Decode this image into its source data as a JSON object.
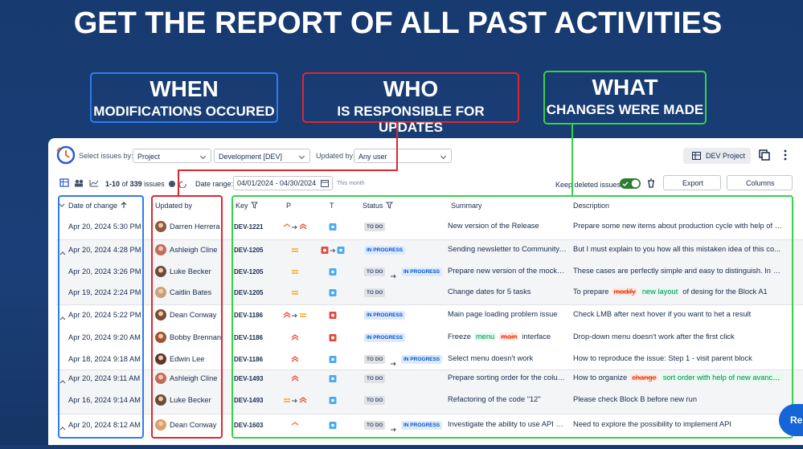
{
  "headline": "GET THE REPORT OF ALL PAST ACTIVITIES",
  "callouts": [
    {
      "title": "WHEN",
      "subtitle": "MODIFICATIONS OCCURED",
      "color": "#2f7bf0"
    },
    {
      "title": "WHO",
      "subtitle": "IS RESPONSIBLE FOR UPDATES",
      "color": "#e0262f"
    },
    {
      "title": "WHAT",
      "subtitle": "CHANGES WERE MADE",
      "color": "#38d14a"
    }
  ],
  "toolbar": {
    "select_label": "Select issues by:",
    "select_value": "Project",
    "project_value": "Development [DEV]",
    "updated_by_label": "Updated by:",
    "updated_by_value": "Any user",
    "project_button": "DEV Project"
  },
  "toolbar2": {
    "range": "1-10",
    "of": "of",
    "total": "339",
    "issues": "issues",
    "date_label": "Date range:",
    "date_value": "04/01/2024 - 04/30/2024",
    "date_hint": "This month",
    "keep_deleted": "Keep deleted issues",
    "export": "Export",
    "columns": "Columns"
  },
  "table": {
    "headers": [
      "Date of change",
      "Updated by",
      "Key",
      "P",
      "T",
      "Status",
      "Summary",
      "Description"
    ],
    "rows": [
      {
        "date": "Apr 20, 2024 5:30 PM",
        "user": "Darren Herrera",
        "avatar": "#8a5a3c",
        "key": "DEV-1221",
        "priority": [
          "high",
          "highest"
        ],
        "type": [
          "task"
        ],
        "status": [
          "TO DO"
        ],
        "summary": [
          {
            "text": "New version of the Release",
            "kind": "plain"
          }
        ],
        "description": [
          {
            "text": "Prepare some new items about production cycle with help of ...",
            "kind": "plain"
          }
        ]
      },
      {
        "date": "Apr 20, 2024 4:28 PM",
        "user": "Ashleigh Cline",
        "avatar": "#c46a5a",
        "key": "DEV-1205",
        "priority": [
          "medium"
        ],
        "type": [
          "bug",
          "task"
        ],
        "status": [
          "IN PROGRESS"
        ],
        "summary": [
          {
            "text": "Sending newsletter to Community...",
            "kind": "plain"
          }
        ],
        "description": [
          {
            "text": "But I must explain to you how all this mistaken idea of this co...",
            "kind": "plain"
          }
        ]
      },
      {
        "date": "Apr 20, 2024 3:26 PM",
        "user": "Luke Becker",
        "avatar": "#6b4a3a",
        "key": "DEV-1205",
        "priority": [
          "medium"
        ],
        "type": [
          "task"
        ],
        "status": [
          "TO DO",
          "IN PROGRESS"
        ],
        "summary": [
          {
            "text": "Prepare new version of the mocku...",
            "kind": "plain"
          }
        ],
        "description": [
          {
            "text": "These cases are perfectly simple and easy to distinguish. In a...",
            "kind": "plain"
          }
        ]
      },
      {
        "date": "Apr 19, 2024 2:24 PM",
        "user": "Caitlin Bates",
        "avatar": "#c9a27c",
        "key": "DEV-1205",
        "priority": [
          "medium"
        ],
        "type": [
          "task"
        ],
        "status": [
          "TO DO"
        ],
        "summary": [
          {
            "text": "Change dates for 5 tasks",
            "kind": "plain"
          }
        ],
        "description": [
          {
            "text": "To prepare",
            "kind": "plain"
          },
          {
            "text": "modify",
            "kind": "removed"
          },
          {
            "text": "new layout",
            "kind": "added"
          },
          {
            "text": "of desing for the Block A1",
            "kind": "plain"
          }
        ]
      },
      {
        "date": "Apr 20, 2024 5:22 PM",
        "user": "Dean Conway",
        "avatar": "#7a4e36",
        "key": "DEV-1186",
        "priority": [
          "highest",
          "medium"
        ],
        "type": [
          "bug"
        ],
        "status": [
          "IN PROGRESS"
        ],
        "summary": [
          {
            "text": "Main page loading problem issue",
            "kind": "plain"
          }
        ],
        "description": [
          {
            "text": "Check LMB after next hover if you want to het a result",
            "kind": "plain"
          }
        ]
      },
      {
        "date": "Apr 20, 2024 9:20 AM",
        "user": "Bobby Brennan",
        "avatar": "#a0522d",
        "key": "DEV-1186",
        "priority": [
          "highest"
        ],
        "type": [
          "bug"
        ],
        "status": [
          "IN PROGRESS"
        ],
        "summary": [
          {
            "text": "Freeze",
            "kind": "plain"
          },
          {
            "text": "menu",
            "kind": "added"
          },
          {
            "text": "main",
            "kind": "removed"
          },
          {
            "text": "interface",
            "kind": "plain"
          }
        ],
        "description": [
          {
            "text": "Drop-down menu doesn't work after the first click",
            "kind": "plain"
          }
        ]
      },
      {
        "date": "Apr 18, 2024 9:18 AM",
        "user": "Edwin Lee",
        "avatar": "#5a3a2a",
        "key": "DEV-1186",
        "priority": [
          "highest"
        ],
        "type": [
          "task"
        ],
        "status": [
          "TO DO",
          "IN PROGRESS"
        ],
        "summary": [
          {
            "text": "Select menu doesn't work",
            "kind": "plain"
          }
        ],
        "description": [
          {
            "text": "How to reproduce the issue: Step 1 - visit parent block",
            "kind": "plain"
          }
        ]
      },
      {
        "date": "Apr 20, 2024 9:11 AM",
        "user": "Ashleigh Cline",
        "avatar": "#c46a5a",
        "key": "DEV-1493",
        "priority": [
          "highest"
        ],
        "type": [
          "task"
        ],
        "status": [
          "TO DO"
        ],
        "summary": [
          {
            "text": "Prepare sorting order for the colu...",
            "kind": "plain"
          }
        ],
        "description": [
          {
            "text": "How to organize",
            "kind": "plain"
          },
          {
            "text": "change",
            "kind": "removed"
          },
          {
            "text": "sort order with help of new avanced ...",
            "kind": "added"
          }
        ]
      },
      {
        "date": "Apr 16, 2024 9:14 AM",
        "user": "Luke Becker",
        "avatar": "#6b4a3a",
        "key": "DEV-1493",
        "priority": [
          "medium",
          "highest"
        ],
        "type": [
          "task"
        ],
        "status": [
          "TO DO"
        ],
        "summary": [
          {
            "text": "Refactoring of the code \"12\"",
            "kind": "plain"
          }
        ],
        "description": [
          {
            "text": "Please check Block B before new run",
            "kind": "plain"
          }
        ]
      },
      {
        "date": "Apr 20, 2024 8:12 AM",
        "user": "Dean Conway",
        "avatar": "#d9a06a",
        "key": "DEV-1603",
        "priority": [
          "high"
        ],
        "type": [
          "task"
        ],
        "status": [
          "TO DO",
          "IN PROGRESS"
        ],
        "summary": [
          {
            "text": "Investigate the ability to use API 1...",
            "kind": "plain"
          }
        ],
        "description": [
          {
            "text": "Need to explore the possibility to implement API",
            "kind": "plain"
          }
        ]
      }
    ]
  },
  "chat_button": "Re"
}
